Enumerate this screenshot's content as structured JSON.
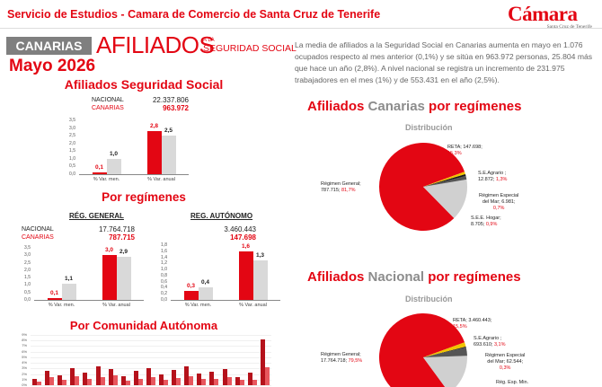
{
  "header": {
    "title": "Servicio de Estudios - Camara de Comercio de Santa Cruz de Tenerife"
  },
  "logo": {
    "name": "Cámara",
    "sub": "Santa Cruz de Tenerife"
  },
  "banner": {
    "region": "CANARIAS",
    "title": "AFILIADOS",
    "subtitle_small": "A LA",
    "subtitle": "SEGURIDAD SOCIAL",
    "period": "Mayo 2026"
  },
  "intro_text": "La media de afiliados a la Seguridad Social en Canarias aumenta en mayo en 1.076 ocupados respecto al mes anterior (0,1%) y se sitúa en 963.972 personas, 25.804 más que hace un año (2,8%). A nivel nacional se registra un incremento de 231.975 trabajadores en el mes (1%) y de 553.431 en el año (2,5%).",
  "colors": {
    "canarias": "#e30613",
    "nacional": "#d9d9d9",
    "gray_text": "#8c8c8c"
  },
  "total": {
    "title": "Afiliados Seguridad Social",
    "nacional_label": "NACIONAL",
    "nacional_value": "22.337.806",
    "canarias_label": "CANARIAS",
    "canarias_value": "963.972"
  },
  "regimenes_title": "Por regímenes",
  "reg_general": {
    "title": "RÉG. GENERAL",
    "nacional_label": "NACIONAL",
    "nacional_value": "17.764.718",
    "canarias_label": "CANARIAS",
    "canarias_value": "787.715"
  },
  "reg_autonomo": {
    "title": "REG. AUTÓNOMO",
    "nacional_value": "3.460.443",
    "canarias_value": "147.698"
  },
  "comunidad_title": "Por Comunidad Autónoma",
  "pie_canarias": {
    "title_a": "Afiliados ",
    "title_b": "Canarias",
    "title_c": " por regímenes",
    "subtitle": "Distribución",
    "labels": [
      {
        "name": "RETA; 147.698;",
        "pct": "15,3%"
      },
      {
        "name": "S.E.Agrario ;",
        "value": "12.872; ",
        "pct": "1,3%"
      },
      {
        "name": "Régimen Especial",
        "value": "del Mar; 6.981;",
        "pct": "0,7%"
      },
      {
        "name": "S.E.E. Hogar;",
        "value": "8.705; ",
        "pct": "0,9%"
      },
      {
        "name": "Régimen General;",
        "value": "787.715; ",
        "pct": "81,7%"
      }
    ]
  },
  "pie_nacional": {
    "title_a": "Afiliados ",
    "title_b": "Nacional",
    "title_c": " por regímenes",
    "subtitle": "Distribución",
    "labels": [
      {
        "name": "RETA; 3.460.443;",
        "pct": "15,5%"
      },
      {
        "name": "S.E.Agrario ;",
        "value": "693.610; ",
        "pct": "3,1%"
      },
      {
        "name": "Régimen Especial",
        "value": "del Mar; 62.544;",
        "pct": "0,3%"
      },
      {
        "name": "Régimen General;",
        "value": "17.764.718; ",
        "pct": "79,5%"
      },
      {
        "name": "Rég. Esp. Min."
      }
    ]
  },
  "chart_data": [
    {
      "type": "bar",
      "title": "Afiliados Seguridad Social",
      "categories": [
        "% Var. men.",
        "% Var. anual"
      ],
      "ylim": [
        0,
        3.5
      ],
      "yticks": [
        "3,5",
        "3,0",
        "2,5",
        "2,0",
        "1,5",
        "1,0",
        "0,5",
        "0,0"
      ],
      "series": [
        {
          "name": "CANARIAS",
          "values": [
            0.1,
            2.8
          ],
          "labels": [
            "0,1",
            "2,8"
          ]
        },
        {
          "name": "NACIONAL",
          "values": [
            1.0,
            2.5
          ],
          "labels": [
            "1,0",
            "2,5"
          ]
        }
      ]
    },
    {
      "type": "bar",
      "title": "RÉG. GENERAL",
      "categories": [
        "% Var. men.",
        "% Var. anual"
      ],
      "ylim": [
        0,
        3.5
      ],
      "yticks": [
        "3,5",
        "3,0",
        "2,5",
        "2,0",
        "1,5",
        "1,0",
        "0,5",
        "0,0"
      ],
      "series": [
        {
          "name": "CANARIAS",
          "values": [
            0.1,
            3.0
          ],
          "labels": [
            "0,1",
            "3,0"
          ]
        },
        {
          "name": "NACIONAL",
          "values": [
            1.1,
            2.9
          ],
          "labels": [
            "1,1",
            "2,9"
          ]
        }
      ]
    },
    {
      "type": "bar",
      "title": "REG. AUTÓNOMO",
      "categories": [
        "% Var. men.",
        "% Var. anual"
      ],
      "ylim": [
        0,
        1.8
      ],
      "yticks": [
        "1,8",
        "1,6",
        "1,4",
        "1,2",
        "1,0",
        "0,8",
        "0,6",
        "0,4",
        "0,2",
        "0,0"
      ],
      "series": [
        {
          "name": "CANARIAS",
          "values": [
            0.3,
            1.6
          ],
          "labels": [
            "0,3",
            "1,6"
          ]
        },
        {
          "name": "NACIONAL",
          "values": [
            0.4,
            1.3
          ],
          "labels": [
            "0,4",
            "1,3"
          ]
        }
      ]
    },
    {
      "type": "bar",
      "title": "Por Comunidad Autónoma",
      "ylim": [
        0,
        9
      ],
      "yticks": [
        "9%",
        "8%",
        "7%",
        "6%",
        "5%",
        "4%",
        "3%",
        "2%",
        "1%",
        "0%"
      ],
      "series": [
        {
          "name": "dark",
          "values": [
            1.2,
            2.5,
            1.8,
            3.0,
            2.2,
            3.3,
            2.9,
            1.6,
            2.6,
            3.1,
            2.0,
            2.7,
            3.4,
            2.1,
            2.4,
            2.9,
            1.5,
            2.2,
            8.2
          ]
        },
        {
          "name": "light",
          "values": [
            0.6,
            1.5,
            0.9,
            1.6,
            1.1,
            1.4,
            1.7,
            0.8,
            1.2,
            1.5,
            1.0,
            1.3,
            1.6,
            1.1,
            1.2,
            1.4,
            0.9,
            1.0,
            3.2
          ]
        }
      ]
    },
    {
      "type": "pie",
      "title": "Afiliados Canarias por regímenes",
      "categories": [
        "Régimen General",
        "RETA",
        "S.E.Agrario",
        "Régimen Especial del Mar",
        "S.E.E. Hogar"
      ],
      "values": [
        81.7,
        15.3,
        1.3,
        0.7,
        0.9
      ],
      "colors": [
        "#e30613",
        "#d0d0d0",
        "#555555",
        "#1a1a1a",
        "#f0c400"
      ]
    },
    {
      "type": "pie",
      "title": "Afiliados Nacional por regímenes",
      "categories": [
        "Régimen General",
        "RETA",
        "S.E.Agrario",
        "Régimen Especial del Mar",
        "Rég. Esp. Min."
      ],
      "values": [
        79.5,
        15.5,
        3.1,
        0.3,
        1.6
      ],
      "colors": [
        "#e30613",
        "#d0d0d0",
        "#555555",
        "#1a1a1a",
        "#f0c400"
      ]
    }
  ]
}
